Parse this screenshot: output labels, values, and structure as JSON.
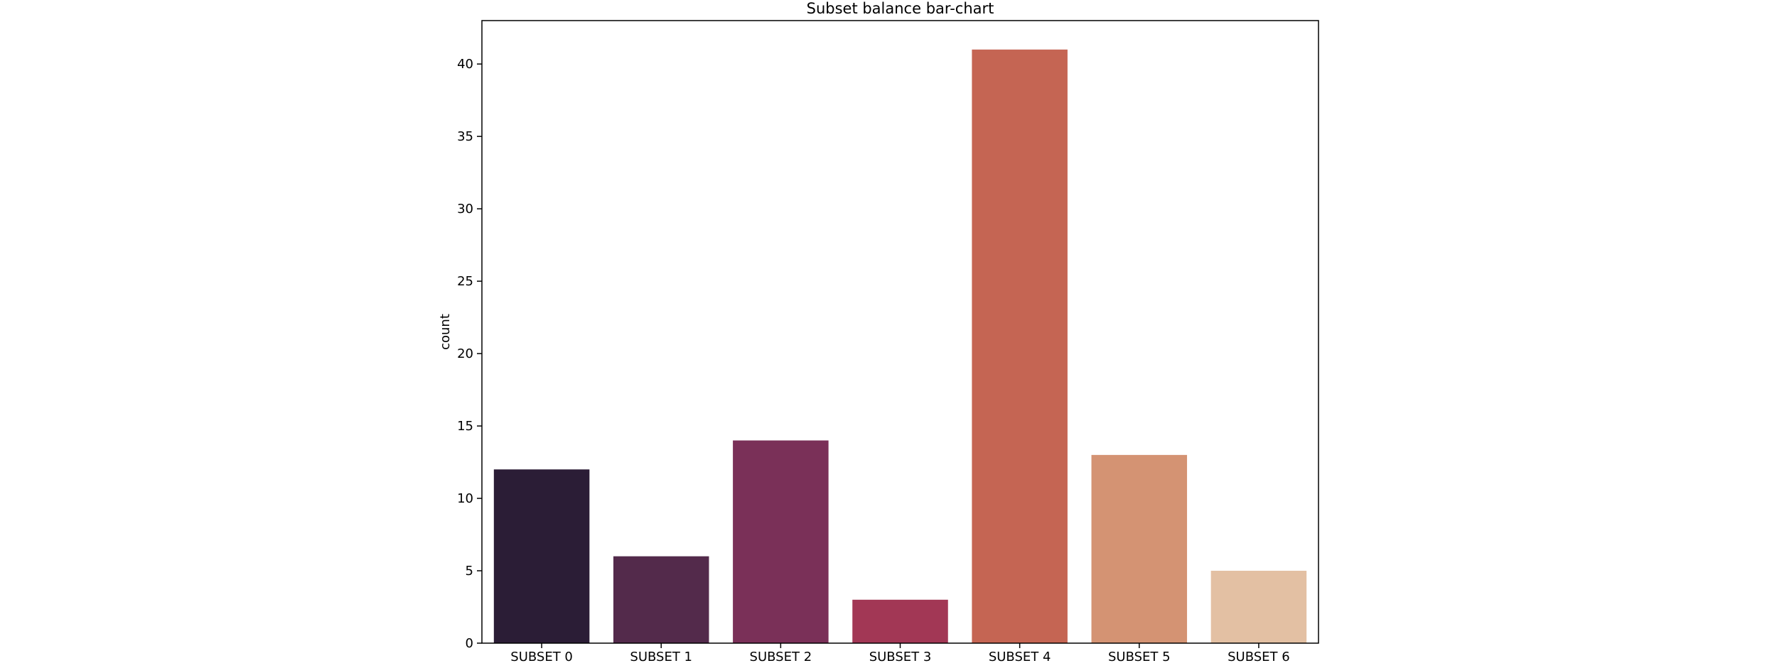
{
  "chart_data": {
    "type": "bar",
    "title": "Subset balance bar-chart",
    "xlabel": "",
    "ylabel": "count",
    "categories": [
      "SUBSET 0",
      "SUBSET 1",
      "SUBSET 2",
      "SUBSET 3",
      "SUBSET 4",
      "SUBSET 5",
      "SUBSET 6"
    ],
    "values": [
      12,
      6,
      14,
      3,
      41,
      13,
      5
    ],
    "colors": [
      "#2b1d36",
      "#532a4b",
      "#7a3058",
      "#a23755",
      "#c56553",
      "#d49373",
      "#e3c0a3"
    ],
    "ylim": [
      0,
      43
    ],
    "yticks": [
      0,
      5,
      10,
      15,
      20,
      25,
      30,
      35,
      40
    ],
    "grid": false,
    "legend": "none"
  }
}
